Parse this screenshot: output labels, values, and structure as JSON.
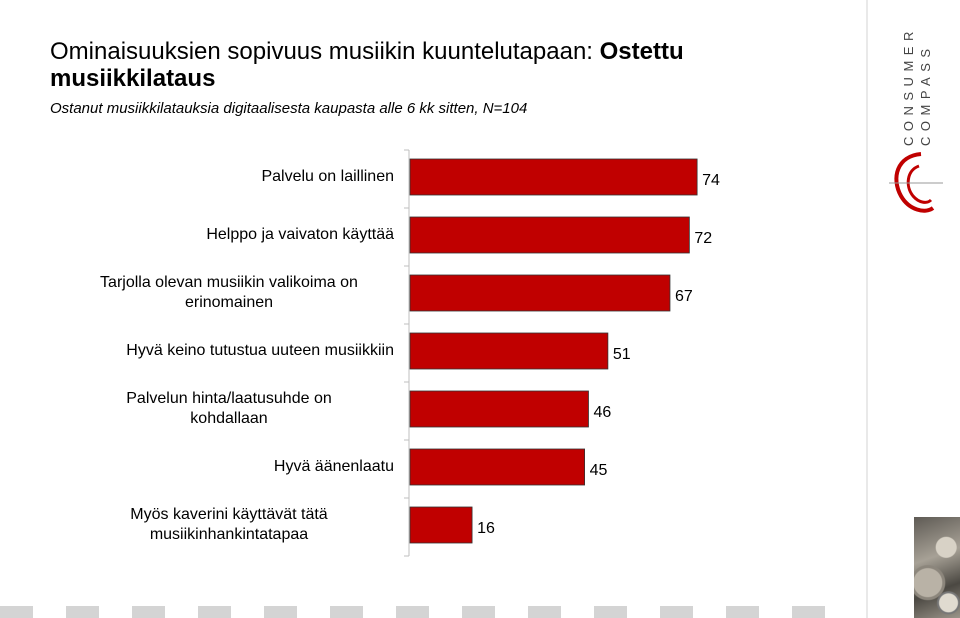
{
  "slide": {
    "title_regular": "Ominaisuuksien sopivuus musiikin kuuntelutapaan: ",
    "title_bold": "Ostettu musiikkilataus",
    "subtitle": "Ostanut musiikkilatauksia digitaalisesta kaupasta alle 6 kk sitten, N=104"
  },
  "logo": {
    "line1": "CONSUMER",
    "line2": "COMPASS",
    "color": "#c00000"
  },
  "chart_data": {
    "type": "bar",
    "orientation": "horizontal",
    "categories": [
      "Palvelu on laillinen",
      "Helppo ja vaivaton käyttää",
      "Tarjolla olevan  musiikin valikoima on erinomainen",
      "Hyvä keino tutustua uuteen musiikkiin",
      "Palvelun hinta/laatusuhde on kohdallaan",
      "Hyvä äänenlaatu",
      "Myös kaverini käyttävät tätä musiikinhankintatapaa"
    ],
    "category_lines": [
      [
        "Palvelu on laillinen"
      ],
      [
        "Helppo ja vaivaton käyttää"
      ],
      [
        "Tarjolla olevan  musiikin valikoima on",
        "erinomainen"
      ],
      [
        "Hyvä keino tutustua uuteen musiikkiin"
      ],
      [
        "Palvelun hinta/laatusuhde on",
        "kohdallaan"
      ],
      [
        "Hyvä äänenlaatu"
      ],
      [
        "Myös kaverini käyttävät tätä",
        "musiikinhankintatapaa"
      ]
    ],
    "values": [
      74,
      72,
      67,
      51,
      46,
      45,
      16
    ],
    "xlim": [
      0,
      100
    ],
    "bar_color": "#c00000",
    "data_labels": true,
    "legend": "none",
    "grid": false
  }
}
